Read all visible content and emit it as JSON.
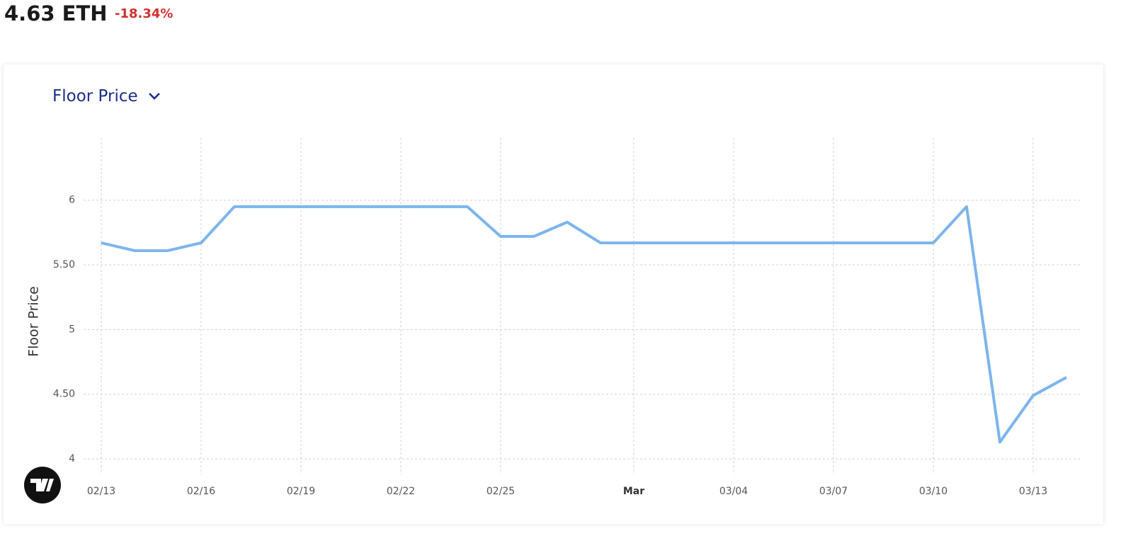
{
  "header": {
    "price": "4.63 ETH",
    "change": "-18.34%"
  },
  "metric_selector": "Floor Price",
  "chart_data": {
    "type": "line",
    "y_label": "Floor Price",
    "categories": [
      "02/13",
      null,
      null,
      "02/16",
      null,
      null,
      "02/19",
      null,
      null,
      "02/22",
      null,
      null,
      "02/25",
      null,
      null,
      null,
      "Mar",
      null,
      null,
      "03/04",
      null,
      null,
      "03/07",
      null,
      null,
      "03/10",
      null,
      null,
      "03/13",
      null
    ],
    "color": "#7cb5ec",
    "values": [
      5.67,
      5.61,
      5.61,
      5.67,
      5.95,
      5.95,
      5.95,
      5.95,
      5.95,
      5.95,
      5.95,
      5.95,
      5.72,
      5.72,
      5.83,
      5.67,
      5.67,
      5.67,
      5.67,
      5.67,
      5.67,
      5.67,
      5.67,
      5.67,
      5.67,
      5.67,
      5.95,
      4.13,
      4.49,
      4.63
    ],
    "ylim": [
      3.88,
      6.48
    ],
    "yticks": [
      4,
      {
        "value": 4.5,
        "label": "4.50"
      },
      5,
      {
        "value": 5.5,
        "label": "5.50"
      },
      6
    ],
    "grid": true
  }
}
